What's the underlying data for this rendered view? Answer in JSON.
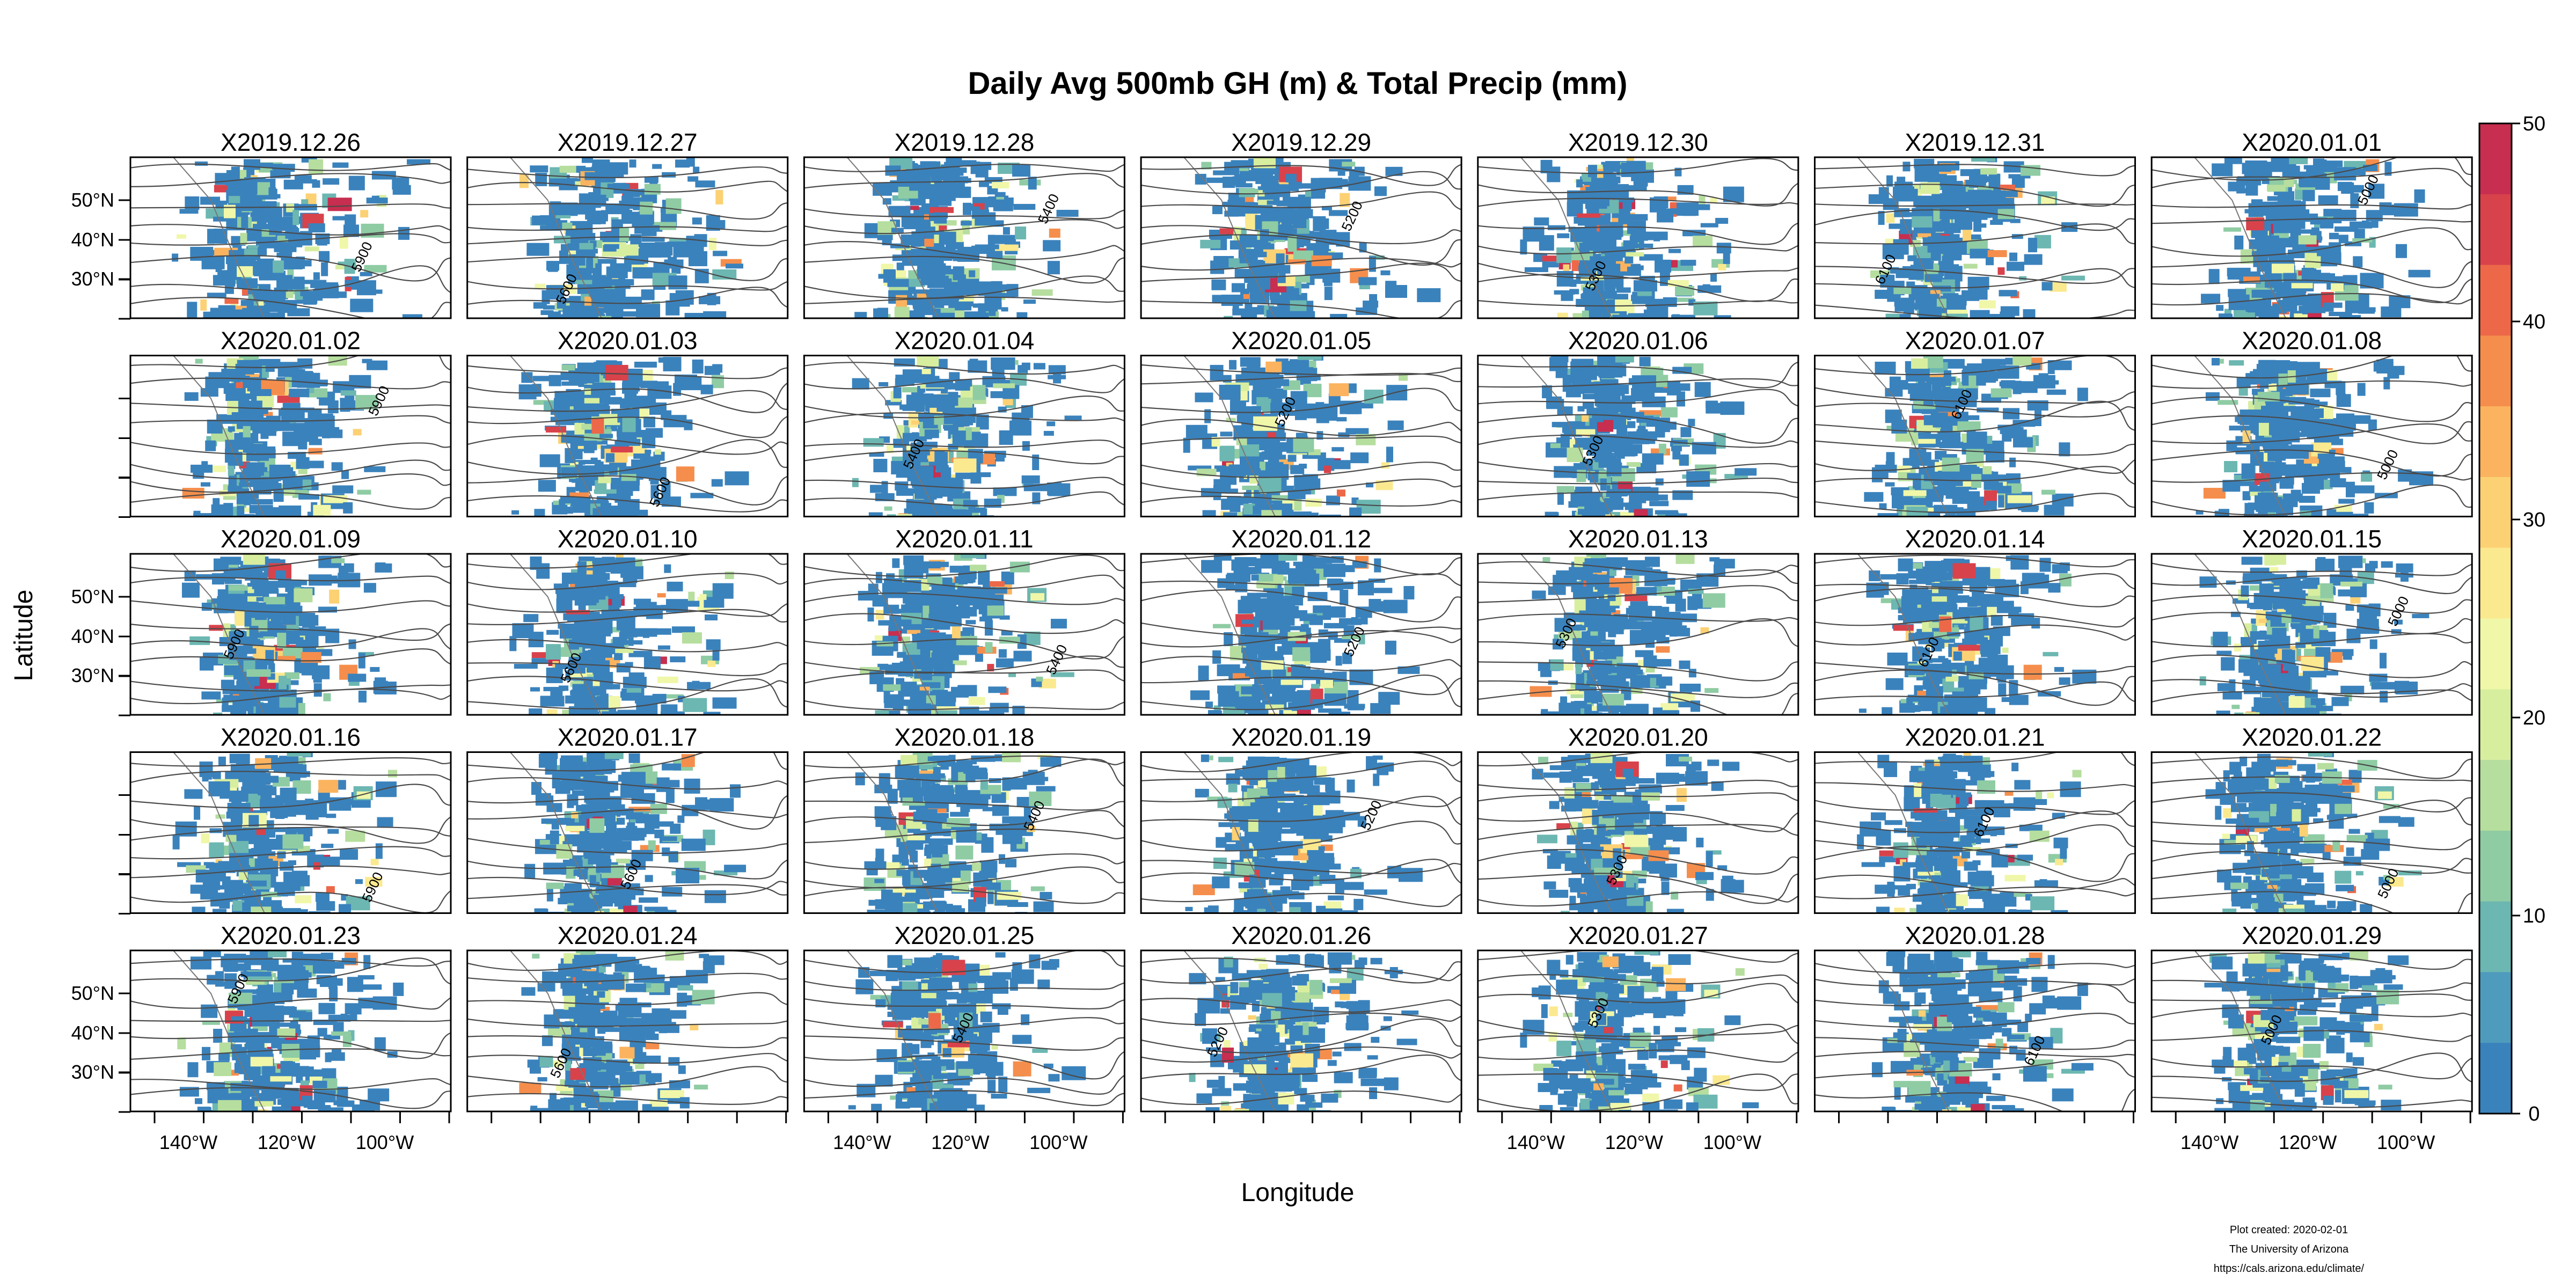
{
  "title": "Daily Avg 500mb GH (m) & Total Precip (mm)",
  "xlabel": "Longitude",
  "ylabel": "Latitude",
  "panels": [
    "X2019.12.26",
    "X2019.12.27",
    "X2019.12.28",
    "X2019.12.29",
    "X2019.12.30",
    "X2019.12.31",
    "X2020.01.01",
    "X2020.01.02",
    "X2020.01.03",
    "X2020.01.04",
    "X2020.01.05",
    "X2020.01.06",
    "X2020.01.07",
    "X2020.01.08",
    "X2020.01.09",
    "X2020.01.10",
    "X2020.01.11",
    "X2020.01.12",
    "X2020.01.13",
    "X2020.01.14",
    "X2020.01.15",
    "X2020.01.16",
    "X2020.01.17",
    "X2020.01.18",
    "X2020.01.19",
    "X2020.01.20",
    "X2020.01.21",
    "X2020.01.22",
    "X2020.01.23",
    "X2020.01.24",
    "X2020.01.25",
    "X2020.01.26",
    "X2020.01.27",
    "X2020.01.28",
    "X2020.01.29"
  ],
  "lat_ticks": [
    "50°N",
    "40°N",
    "30°N"
  ],
  "lon_ticks": [
    "140°W",
    "120°W",
    "100°W"
  ],
  "colorbar": {
    "ticks": [
      0,
      10,
      20,
      30,
      40,
      50
    ],
    "colors": [
      "#3a82bc",
      "#4f9bbd",
      "#6cb7b1",
      "#8fcca4",
      "#b6de9e",
      "#d8ee9f",
      "#f0f7a8",
      "#fbe98f",
      "#fcd174",
      "#fbb35f",
      "#f58e4c",
      "#ec6848",
      "#d8424b",
      "#c72e4f"
    ]
  },
  "contour_labels": [
    "5900",
    "5600",
    "5400",
    "5200",
    "5300",
    "6100",
    "5000"
  ],
  "footer": {
    "line1": "Plot created: 2020-02-01",
    "line2": "The University of Arizona",
    "line3": "https://cals.arizona.edu/climate/"
  }
}
